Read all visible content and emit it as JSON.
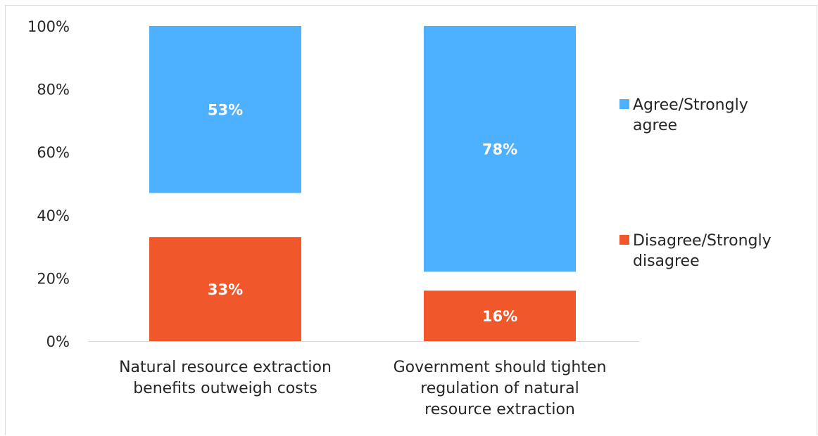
{
  "chart_data": {
    "type": "bar",
    "title": "",
    "xlabel": "",
    "ylabel": "",
    "ylim": [
      0,
      100
    ],
    "y_ticks": [
      "0%",
      "20%",
      "40%",
      "60%",
      "80%",
      "100%"
    ],
    "grid": false,
    "legend_position": "right",
    "categories": [
      [
        "Natural resource extraction",
        "benefits outweigh costs"
      ],
      [
        "Government should tighten",
        "regulation of natural",
        "resource extraction"
      ]
    ],
    "series": [
      {
        "name": "Agree/Strongly agree",
        "name_lines": [
          "Agree/Strongly",
          "agree"
        ],
        "color": "#4db1ff",
        "values": [
          53,
          78
        ],
        "labels": [
          "53%",
          "78%"
        ]
      },
      {
        "name": "Disagree/Strongly disagree",
        "name_lines": [
          "Disagree/Strongly",
          "disagree"
        ],
        "color": "#f0582c",
        "values": [
          33,
          16
        ],
        "labels": [
          "33%",
          "16%"
        ]
      }
    ]
  }
}
